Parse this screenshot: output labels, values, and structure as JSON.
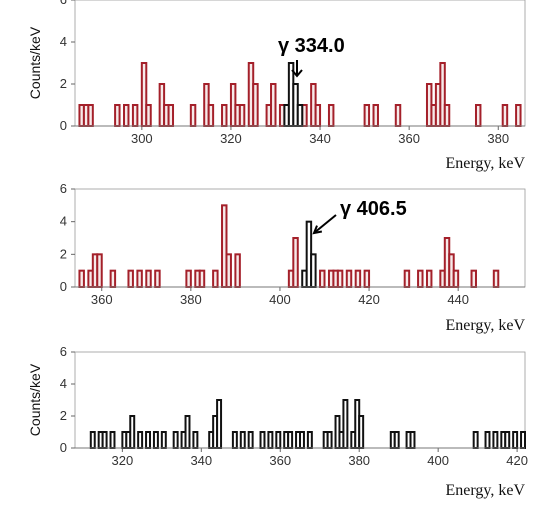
{
  "chart_data": [
    {
      "type": "histogram",
      "ylabel": "Counts/keV",
      "xlabel": "Energy, keV",
      "xlim": [
        285,
        386
      ],
      "ylim": [
        0,
        6
      ],
      "xticks": [
        300,
        320,
        340,
        360,
        380
      ],
      "yticks": [
        0,
        2,
        4,
        6
      ],
      "bins_red": [
        [
          286,
          1
        ],
        [
          287,
          1
        ],
        [
          288,
          1
        ],
        [
          294,
          1
        ],
        [
          296,
          1
        ],
        [
          298,
          1
        ],
        [
          300,
          3
        ],
        [
          301,
          1
        ],
        [
          304,
          2
        ],
        [
          305,
          1
        ],
        [
          306,
          1
        ],
        [
          311,
          1
        ],
        [
          314,
          2
        ],
        [
          315,
          1
        ],
        [
          318,
          1
        ],
        [
          320,
          2
        ],
        [
          321,
          1
        ],
        [
          322,
          1
        ],
        [
          324,
          3
        ],
        [
          325,
          2
        ],
        [
          328,
          1
        ],
        [
          329,
          2
        ],
        [
          331,
          1
        ],
        [
          336,
          1
        ],
        [
          338,
          2
        ],
        [
          339,
          1
        ],
        [
          342,
          1
        ],
        [
          350,
          1
        ],
        [
          352,
          1
        ],
        [
          357,
          1
        ],
        [
          364,
          2
        ],
        [
          365,
          1
        ],
        [
          366,
          2
        ],
        [
          367,
          3
        ],
        [
          368,
          1
        ],
        [
          375,
          1
        ],
        [
          381,
          1
        ],
        [
          384,
          1
        ]
      ],
      "bins_black": [
        [
          332,
          1
        ],
        [
          333,
          3
        ],
        [
          334,
          2
        ],
        [
          335,
          1
        ]
      ],
      "annotations": [
        {
          "text": "γ 334.0",
          "x": 334.0,
          "y": 3
        }
      ]
    },
    {
      "type": "histogram",
      "ylabel": "",
      "xlabel": "Energy, keV",
      "xlim": [
        354,
        455
      ],
      "ylim": [
        0,
        6
      ],
      "xticks": [
        360,
        380,
        400,
        420,
        440
      ],
      "yticks": [
        0,
        2,
        4,
        6
      ],
      "bins_red": [
        [
          355,
          1
        ],
        [
          357,
          1
        ],
        [
          358,
          2
        ],
        [
          359,
          2
        ],
        [
          362,
          1
        ],
        [
          366,
          1
        ],
        [
          368,
          1
        ],
        [
          370,
          1
        ],
        [
          372,
          1
        ],
        [
          379,
          1
        ],
        [
          381,
          1
        ],
        [
          382,
          1
        ],
        [
          385,
          1
        ],
        [
          387,
          5
        ],
        [
          388,
          2
        ],
        [
          390,
          2
        ],
        [
          402,
          1
        ],
        [
          403,
          3
        ],
        [
          409,
          1
        ],
        [
          411,
          1
        ],
        [
          412,
          1
        ],
        [
          413,
          1
        ],
        [
          415,
          1
        ],
        [
          417,
          1
        ],
        [
          419,
          1
        ],
        [
          428,
          1
        ],
        [
          431,
          1
        ],
        [
          433,
          1
        ],
        [
          436,
          1
        ],
        [
          437,
          3
        ],
        [
          438,
          2
        ],
        [
          439,
          1
        ],
        [
          443,
          1
        ],
        [
          448,
          1
        ]
      ],
      "bins_black": [
        [
          405,
          1
        ],
        [
          406,
          4
        ],
        [
          407,
          2
        ]
      ],
      "annotations": [
        {
          "text": "γ 406.5",
          "x": 406.5,
          "y": 4
        }
      ]
    },
    {
      "type": "histogram",
      "ylabel": "Counts/keV",
      "xlabel": "Energy, keV",
      "xlim": [
        308,
        422
      ],
      "ylim": [
        0,
        6
      ],
      "xticks": [
        320,
        340,
        360,
        380,
        400,
        420
      ],
      "yticks": [
        0,
        2,
        4,
        6
      ],
      "bins_red": [],
      "bins_black": [
        [
          312,
          1
        ],
        [
          314,
          1
        ],
        [
          315,
          1
        ],
        [
          317,
          1
        ],
        [
          320,
          1
        ],
        [
          321,
          1
        ],
        [
          322,
          2
        ],
        [
          324,
          1
        ],
        [
          326,
          1
        ],
        [
          328,
          1
        ],
        [
          330,
          1
        ],
        [
          333,
          1
        ],
        [
          335,
          1
        ],
        [
          336,
          2
        ],
        [
          338,
          1
        ],
        [
          342,
          1
        ],
        [
          343,
          2
        ],
        [
          344,
          3
        ],
        [
          348,
          1
        ],
        [
          350,
          1
        ],
        [
          352,
          1
        ],
        [
          355,
          1
        ],
        [
          357,
          1
        ],
        [
          359,
          1
        ],
        [
          361,
          1
        ],
        [
          362,
          1
        ],
        [
          364,
          1
        ],
        [
          365,
          1
        ],
        [
          367,
          1
        ],
        [
          371,
          1
        ],
        [
          372,
          1
        ],
        [
          374,
          2
        ],
        [
          375,
          1
        ],
        [
          376,
          3
        ],
        [
          378,
          1
        ],
        [
          379,
          3
        ],
        [
          380,
          2
        ],
        [
          388,
          1
        ],
        [
          389,
          1
        ],
        [
          392,
          1
        ],
        [
          393,
          1
        ],
        [
          409,
          1
        ],
        [
          412,
          1
        ],
        [
          414,
          1
        ],
        [
          416,
          1
        ],
        [
          417,
          1
        ],
        [
          419,
          1
        ],
        [
          421,
          1
        ]
      ],
      "annotations": []
    }
  ]
}
